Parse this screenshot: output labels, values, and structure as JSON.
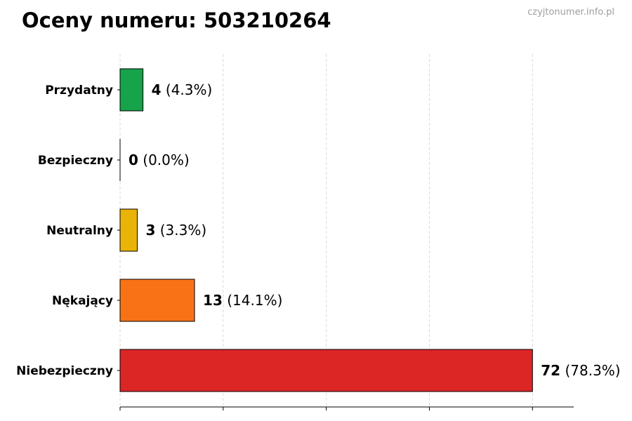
{
  "header": {
    "title": "Oceny numeru: 503210264",
    "site": "czyjtonumer.info.pl"
  },
  "chart_data": {
    "type": "bar",
    "orientation": "horizontal",
    "title": "Oceny numeru: 503210264",
    "xlabel": "",
    "ylabel": "",
    "categories": [
      "Przydatny",
      "Bezpieczny",
      "Neutralny",
      "Nękający",
      "Niebezpieczny"
    ],
    "values": [
      4,
      0,
      3,
      13,
      72
    ],
    "value_labels": [
      "4",
      "0",
      "3",
      "13",
      "72"
    ],
    "percent_labels": [
      "(4.3%)",
      "(0.0%)",
      "(3.3%)",
      "(14.1%)",
      "(78.3%)"
    ],
    "colors": [
      "#16a34a",
      "#6b7280",
      "#eab308",
      "#f97316",
      "#dc2626"
    ],
    "xlim": [
      0,
      79.2
    ],
    "xticks": [
      0,
      18,
      36,
      54,
      72
    ],
    "grid": "vertical-dashed",
    "legend": "none"
  }
}
